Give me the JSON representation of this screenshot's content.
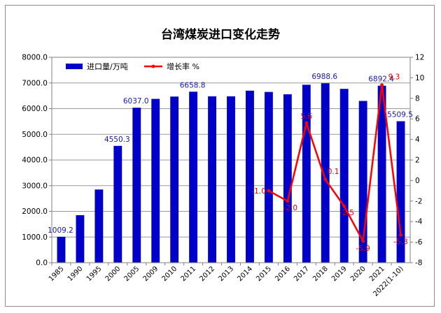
{
  "colors": {
    "bar": "#0000c8",
    "line": "#ff0000",
    "grid": "#9a9a9a",
    "axis": "#7f7f7f",
    "plot_border": "#808080"
  },
  "chart_data": {
    "type": "bar",
    "title": "台湾煤炭进口变化走势",
    "legend_position": "top-left",
    "grid": true,
    "categories": [
      "1985",
      "1990",
      "1995",
      "2000",
      "2005",
      "2009",
      "2010",
      "2011",
      "2012",
      "2013",
      "2014",
      "2015",
      "2016",
      "2017",
      "2018",
      "2019",
      "2020",
      "2021",
      "2022(1-10)"
    ],
    "y_left": {
      "ylim": [
        0,
        8000
      ],
      "ticks": [
        "0.0",
        "1000.0",
        "2000.0",
        "3000.0",
        "4000.0",
        "5000.0",
        "6000.0",
        "7000.0",
        "8000.0"
      ]
    },
    "y_right": {
      "ylim": [
        -8,
        12
      ],
      "ticks": [
        "-8",
        "-6",
        "-4",
        "-2",
        "0",
        "2",
        "4",
        "6",
        "8",
        "10",
        "12"
      ]
    },
    "series": [
      {
        "name": "进口量/万吨",
        "type": "bar",
        "axis": "left",
        "values": [
          1009.2,
          1850,
          2850,
          4550.3,
          6037.0,
          6380,
          6470,
          6658.8,
          6480,
          6480,
          6700,
          6650,
          6560,
          6930,
          6988.6,
          6770,
          6300,
          6892.4,
          5509.5
        ],
        "labels": [
          "1009.2",
          null,
          null,
          "4550.3",
          "6037.0",
          null,
          null,
          "6658.8",
          null,
          null,
          null,
          null,
          null,
          null,
          "6988.6",
          null,
          null,
          "6892.4",
          "5509.5"
        ]
      },
      {
        "name": "增长率 %",
        "type": "line",
        "axis": "right",
        "values": [
          null,
          null,
          null,
          null,
          null,
          null,
          null,
          null,
          null,
          null,
          null,
          -1.0,
          -2.0,
          5.6,
          0.1,
          -2.5,
          -5.9,
          9.3,
          -5.3
        ],
        "labels": [
          null,
          null,
          null,
          null,
          null,
          null,
          null,
          null,
          null,
          null,
          null,
          "-1.0",
          "-2.0",
          "5.6",
          "0.1",
          "-2.5",
          "-5.9",
          "9.3",
          "-5.3"
        ]
      }
    ]
  }
}
